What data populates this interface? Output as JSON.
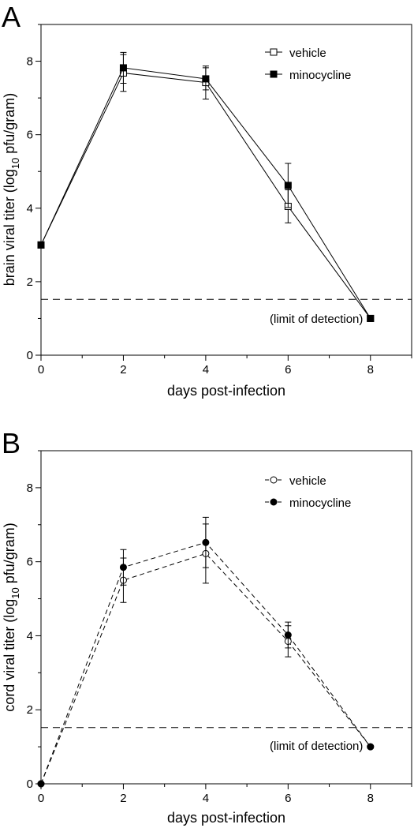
{
  "colors": {
    "ink": "#000000",
    "background": "#ffffff"
  },
  "chart_data": [
    {
      "panel": "A",
      "type": "line",
      "xlabel": "days post-infection",
      "ylabel_main": "brain viral titer (log",
      "ylabel_sub": "10",
      "ylabel_tail": " pfu/gram)",
      "xlim": [
        0,
        9
      ],
      "ylim": [
        0,
        9
      ],
      "xticks": [
        0,
        2,
        4,
        6,
        8
      ],
      "yticks": [
        0,
        2,
        4,
        6,
        8
      ],
      "grid": false,
      "legend_position": "top-right",
      "line_style": "solid",
      "limit_of_detection": {
        "y": 1.52,
        "label": "(limit of detection)",
        "style": "dashed"
      },
      "series": [
        {
          "name": "vehicle",
          "marker": "open-square",
          "x": [
            0,
            2,
            4,
            6,
            8
          ],
          "y": [
            3.0,
            7.68,
            7.42,
            4.05,
            1.0
          ],
          "err": [
            0,
            0.5,
            0.45,
            0.45,
            0
          ]
        },
        {
          "name": "minocycline",
          "marker": "filled-square",
          "x": [
            0,
            2,
            4,
            6,
            8
          ],
          "y": [
            3.0,
            7.82,
            7.52,
            4.62,
            1.0
          ],
          "err": [
            0,
            0.42,
            0.3,
            0.6,
            0
          ]
        }
      ]
    },
    {
      "panel": "B",
      "type": "line",
      "xlabel": "days post-infection",
      "ylabel_main": "cord viral titer (log",
      "ylabel_sub": "10",
      "ylabel_tail": " pfu/gram)",
      "xlim": [
        0,
        9
      ],
      "ylim": [
        0,
        9
      ],
      "xticks": [
        0,
        2,
        4,
        6,
        8
      ],
      "yticks": [
        0,
        2,
        4,
        6,
        8
      ],
      "grid": false,
      "legend_position": "top-right",
      "line_style": "dashed",
      "limit_of_detection": {
        "y": 1.52,
        "label": "(limit of detection)",
        "style": "dashed"
      },
      "series": [
        {
          "name": "vehicle",
          "marker": "open-circle",
          "x": [
            0,
            2,
            4,
            6,
            8
          ],
          "y": [
            0,
            5.5,
            6.22,
            3.85,
            1.0
          ],
          "err": [
            0,
            0.6,
            0.8,
            0.42,
            0
          ]
        },
        {
          "name": "minocycline",
          "marker": "filled-circle",
          "x": [
            0,
            2,
            4,
            6,
            8
          ],
          "y": [
            0,
            5.85,
            6.52,
            4.02,
            1.0
          ],
          "err": [
            0,
            0.48,
            0.68,
            0.35,
            0
          ]
        }
      ]
    }
  ]
}
